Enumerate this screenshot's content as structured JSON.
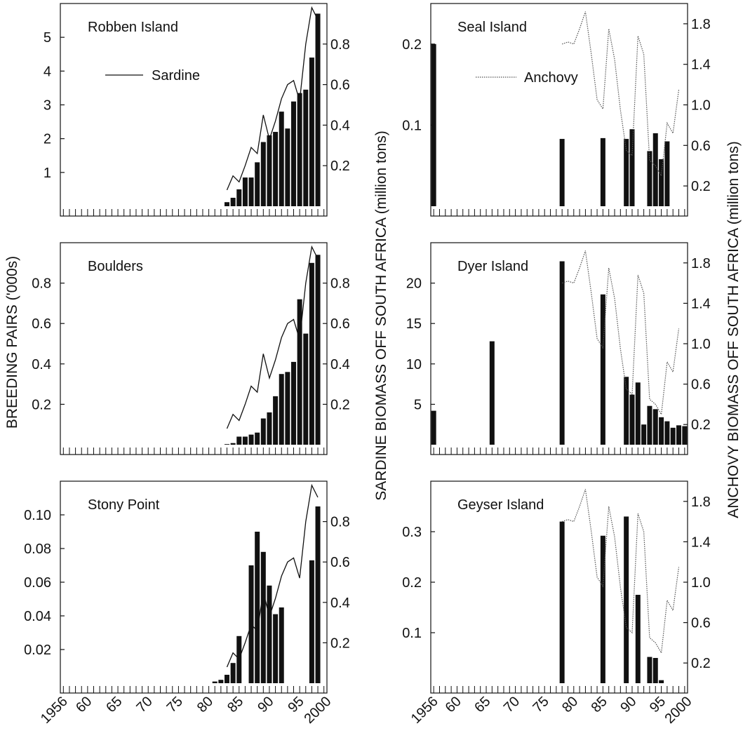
{
  "figure": {
    "left_axis_label": "BREEDING PAIRS ('000s)",
    "middle_axis_label": "SARDINE BIOMASS OFF SOUTH AFRICA (million tons)",
    "right_axis_label": "ANCHOVY BIOMASS OFF SOUTH AFRICA (million tons)",
    "legend_sardine": "Sardine",
    "legend_anchovy": "Anchovy",
    "x_tick_labels": [
      "1956",
      "60",
      "65",
      "70",
      "75",
      "80",
      "85",
      "90",
      "95",
      "2000"
    ]
  },
  "chart_data": [
    {
      "type": "bar",
      "title": "Robben Island",
      "side": "left",
      "ylim": [
        0,
        6
      ],
      "y_ticks": [
        1,
        2,
        3,
        4,
        5
      ],
      "bars": [
        [
          1983,
          0.12
        ],
        [
          1984,
          0.25
        ],
        [
          1985,
          0.5
        ],
        [
          1986,
          0.85
        ],
        [
          1987,
          0.85
        ],
        [
          1988,
          1.3
        ],
        [
          1989,
          1.9
        ],
        [
          1990,
          2.1
        ],
        [
          1991,
          2.2
        ],
        [
          1992,
          2.8
        ],
        [
          1993,
          2.3
        ],
        [
          1994,
          3.1
        ],
        [
          1995,
          3.35
        ],
        [
          1996,
          3.45
        ],
        [
          1997,
          4.4
        ],
        [
          1998,
          5.7
        ]
      ],
      "biomass": {
        "name": "Sardine",
        "axis_label": "SARDINE",
        "ylim": [
          0,
          1.0
        ],
        "ticks": [
          0.2,
          0.4,
          0.6,
          0.8
        ],
        "points": [
          [
            1983,
            0.08
          ],
          [
            1984,
            0.15
          ],
          [
            1985,
            0.12
          ],
          [
            1986,
            0.2
          ],
          [
            1987,
            0.29
          ],
          [
            1988,
            0.26
          ],
          [
            1989,
            0.45
          ],
          [
            1990,
            0.33
          ],
          [
            1991,
            0.42
          ],
          [
            1992,
            0.53
          ],
          [
            1993,
            0.6
          ],
          [
            1994,
            0.62
          ],
          [
            1995,
            0.52
          ],
          [
            1996,
            0.8
          ],
          [
            1997,
            0.98
          ],
          [
            1998,
            0.92
          ]
        ]
      }
    },
    {
      "type": "bar",
      "title": "Boulders",
      "side": "left",
      "ylim": [
        0,
        1.0
      ],
      "y_ticks": [
        0.2,
        0.4,
        0.6,
        0.8
      ],
      "bars": [
        [
          1983,
          0.003
        ],
        [
          1984,
          0.008
        ],
        [
          1985,
          0.04
        ],
        [
          1986,
          0.04
        ],
        [
          1987,
          0.05
        ],
        [
          1988,
          0.06
        ],
        [
          1989,
          0.13
        ],
        [
          1990,
          0.16
        ],
        [
          1991,
          0.24
        ],
        [
          1992,
          0.35
        ],
        [
          1993,
          0.36
        ],
        [
          1994,
          0.41
        ],
        [
          1995,
          0.72
        ],
        [
          1996,
          0.55
        ],
        [
          1997,
          0.9
        ],
        [
          1998,
          0.94
        ]
      ],
      "biomass": {
        "name": "Sardine",
        "axis_label": "SARDINE",
        "ylim": [
          0,
          1.0
        ],
        "ticks": [
          0.2,
          0.4,
          0.6,
          0.8
        ],
        "points": [
          [
            1983,
            0.08
          ],
          [
            1984,
            0.15
          ],
          [
            1985,
            0.12
          ],
          [
            1986,
            0.2
          ],
          [
            1987,
            0.29
          ],
          [
            1988,
            0.26
          ],
          [
            1989,
            0.45
          ],
          [
            1990,
            0.33
          ],
          [
            1991,
            0.42
          ],
          [
            1992,
            0.53
          ],
          [
            1993,
            0.6
          ],
          [
            1994,
            0.62
          ],
          [
            1995,
            0.52
          ],
          [
            1996,
            0.8
          ],
          [
            1997,
            0.98
          ],
          [
            1998,
            0.92
          ]
        ]
      }
    },
    {
      "type": "bar",
      "title": "Stony Point",
      "side": "left",
      "ylim": [
        0,
        0.12
      ],
      "y_ticks": [
        "0.02",
        "0.04",
        "0.06",
        "0.08",
        "0.10"
      ],
      "bars": [
        [
          1981,
          0.001
        ],
        [
          1982,
          0.002
        ],
        [
          1983,
          0.005
        ],
        [
          1984,
          0.012
        ],
        [
          1985,
          0.028
        ],
        [
          1987,
          0.07
        ],
        [
          1988,
          0.09
        ],
        [
          1989,
          0.078
        ],
        [
          1990,
          0.058
        ],
        [
          1991,
          0.041
        ],
        [
          1992,
          0.045
        ],
        [
          1997,
          0.073
        ],
        [
          1998,
          0.105
        ]
      ],
      "biomass": {
        "name": "Sardine",
        "axis_label": "SARDINE",
        "ylim": [
          0,
          1.0
        ],
        "ticks": [
          0.2,
          0.4,
          0.6,
          0.8
        ],
        "points": [
          [
            1983,
            0.08
          ],
          [
            1984,
            0.15
          ],
          [
            1985,
            0.12
          ],
          [
            1986,
            0.2
          ],
          [
            1987,
            0.29
          ],
          [
            1988,
            0.26
          ],
          [
            1989,
            0.45
          ],
          [
            1990,
            0.33
          ],
          [
            1991,
            0.42
          ],
          [
            1992,
            0.53
          ],
          [
            1993,
            0.6
          ],
          [
            1994,
            0.62
          ],
          [
            1995,
            0.52
          ],
          [
            1996,
            0.8
          ],
          [
            1997,
            0.98
          ],
          [
            1998,
            0.92
          ]
        ]
      }
    },
    {
      "type": "bar",
      "title": "Seal Island",
      "side": "right",
      "ylim": [
        0,
        0.25
      ],
      "y_ticks": [
        "0.1",
        "0.2"
      ],
      "bars": [
        [
          1956,
          0.2
        ],
        [
          1978,
          0.083
        ],
        [
          1985,
          0.084
        ],
        [
          1989,
          0.083
        ],
        [
          1990,
          0.095
        ],
        [
          1993,
          0.068
        ],
        [
          1994,
          0.09
        ],
        [
          1995,
          0.058
        ],
        [
          1996,
          0.08
        ]
      ],
      "biomass": {
        "name": "Anchovy",
        "axis_label": "ANCHOVY",
        "ylim": [
          0,
          2.0
        ],
        "ticks": [
          0.2,
          0.6,
          1.0,
          1.4,
          1.8
        ],
        "points": [
          [
            1978,
            1.6
          ],
          [
            1979,
            1.62
          ],
          [
            1980,
            1.6
          ],
          [
            1981,
            1.75
          ],
          [
            1982,
            1.92
          ],
          [
            1983,
            1.5
          ],
          [
            1984,
            1.05
          ],
          [
            1985,
            0.96
          ],
          [
            1986,
            1.75
          ],
          [
            1987,
            1.45
          ],
          [
            1988,
            0.95
          ],
          [
            1989,
            0.55
          ],
          [
            1990,
            0.5
          ],
          [
            1991,
            1.68
          ],
          [
            1992,
            1.5
          ],
          [
            1993,
            0.45
          ],
          [
            1994,
            0.4
          ],
          [
            1995,
            0.3
          ],
          [
            1996,
            0.82
          ],
          [
            1997,
            0.72
          ],
          [
            1998,
            1.15
          ]
        ]
      }
    },
    {
      "type": "bar",
      "title": "Dyer Island",
      "side": "right",
      "ylim": [
        0,
        25
      ],
      "y_ticks": [
        "5",
        "10",
        "15",
        "20"
      ],
      "bars": [
        [
          1956,
          4.2
        ],
        [
          1966,
          12.8
        ],
        [
          1978,
          22.7
        ],
        [
          1985,
          18.6
        ],
        [
          1989,
          8.4
        ],
        [
          1990,
          6.2
        ],
        [
          1991,
          7.7
        ],
        [
          1992,
          2.5
        ],
        [
          1993,
          4.8
        ],
        [
          1994,
          4.4
        ],
        [
          1995,
          3.4
        ],
        [
          1996,
          2.9
        ],
        [
          1997,
          2.1
        ],
        [
          1998,
          2.4
        ],
        [
          1999,
          2.3
        ]
      ],
      "biomass": {
        "name": "Anchovy",
        "axis_label": "ANCHOVY",
        "ylim": [
          0,
          2.0
        ],
        "ticks": [
          0.2,
          0.6,
          1.0,
          1.4,
          1.8
        ],
        "points": [
          [
            1978,
            1.6
          ],
          [
            1979,
            1.62
          ],
          [
            1980,
            1.6
          ],
          [
            1981,
            1.75
          ],
          [
            1982,
            1.92
          ],
          [
            1983,
            1.5
          ],
          [
            1984,
            1.05
          ],
          [
            1985,
            0.96
          ],
          [
            1986,
            1.75
          ],
          [
            1987,
            1.45
          ],
          [
            1988,
            0.95
          ],
          [
            1989,
            0.55
          ],
          [
            1990,
            0.5
          ],
          [
            1991,
            1.68
          ],
          [
            1992,
            1.5
          ],
          [
            1993,
            0.45
          ],
          [
            1994,
            0.4
          ],
          [
            1995,
            0.3
          ],
          [
            1996,
            0.82
          ],
          [
            1997,
            0.72
          ],
          [
            1998,
            1.15
          ]
        ]
      }
    },
    {
      "type": "bar",
      "title": "Geyser Island",
      "side": "right",
      "ylim": [
        0,
        0.4
      ],
      "y_ticks": [
        "0.1",
        "0.2",
        "0.3"
      ],
      "bars": [
        [
          1978,
          0.32
        ],
        [
          1985,
          0.292
        ],
        [
          1989,
          0.33
        ],
        [
          1991,
          0.175
        ],
        [
          1993,
          0.052
        ],
        [
          1994,
          0.05
        ],
        [
          1995,
          0.006
        ]
      ],
      "biomass": {
        "name": "Anchovy",
        "axis_label": "ANCHOVY",
        "ylim": [
          0,
          2.0
        ],
        "ticks": [
          0.2,
          0.6,
          1.0,
          1.4,
          1.8
        ],
        "points": [
          [
            1978,
            1.6
          ],
          [
            1979,
            1.62
          ],
          [
            1980,
            1.6
          ],
          [
            1981,
            1.75
          ],
          [
            1982,
            1.92
          ],
          [
            1983,
            1.5
          ],
          [
            1984,
            1.05
          ],
          [
            1985,
            0.96
          ],
          [
            1986,
            1.75
          ],
          [
            1987,
            1.45
          ],
          [
            1988,
            0.95
          ],
          [
            1989,
            0.55
          ],
          [
            1990,
            0.5
          ],
          [
            1991,
            1.68
          ],
          [
            1992,
            1.5
          ],
          [
            1993,
            0.45
          ],
          [
            1994,
            0.4
          ],
          [
            1995,
            0.3
          ],
          [
            1996,
            0.82
          ],
          [
            1997,
            0.72
          ],
          [
            1998,
            1.15
          ]
        ]
      }
    }
  ]
}
